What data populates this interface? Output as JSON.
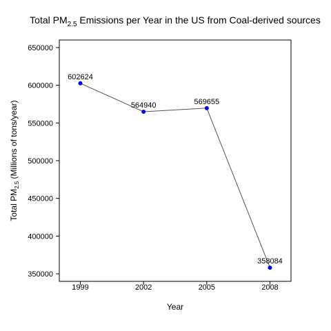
{
  "chart_data": {
    "type": "line",
    "title": {
      "prefix": "Total PM",
      "subscript": "2.5",
      "suffix": " Emissions per Year in the US from Coal-derived sources"
    },
    "xlabel": "Year",
    "ylabel": {
      "prefix": "Total PM",
      "subscript": "2.5",
      "suffix": " (Millions of tons/year)"
    },
    "x": [
      1999,
      2002,
      2005,
      2008
    ],
    "y": [
      602624,
      564940,
      569655,
      358084
    ],
    "data_labels": [
      "602624",
      "564940",
      "569655",
      "358084"
    ],
    "x_ticks": [
      "1999",
      "2002",
      "2005",
      "2008"
    ],
    "y_ticks": [
      350000,
      400000,
      450000,
      500000,
      550000,
      600000,
      650000
    ],
    "y_tick_labels": [
      "350000",
      "400000",
      "450000",
      "500000",
      "550000",
      "600000",
      "650000"
    ],
    "xlim": [
      1998,
      2009
    ],
    "ylim": [
      340000,
      660000
    ],
    "grid": false,
    "legend": "none",
    "colors": {
      "line": "#555555",
      "point": "#0000ee",
      "frame": "#000000"
    }
  }
}
